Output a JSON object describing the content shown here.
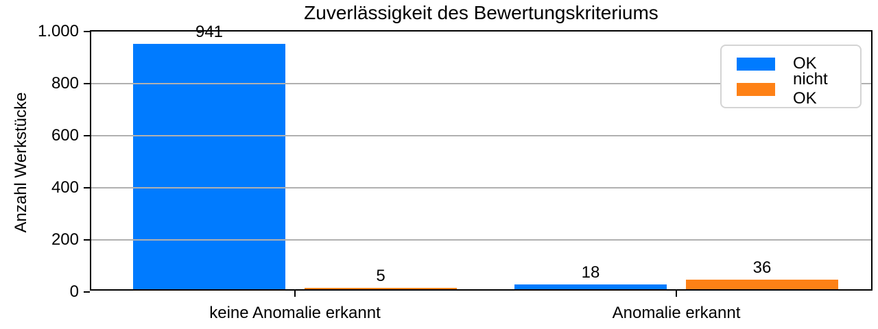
{
  "chart_data": {
    "type": "bar",
    "title": "Zuverlässigkeit des Bewertungskriteriums",
    "xlabel": "",
    "ylabel": "Anzahl Werkstücke",
    "categories": [
      "keine Anomalie erkannt",
      "Anomalie erkannt"
    ],
    "series": [
      {
        "name": "OK",
        "color": "#007bff",
        "values": [
          941,
          18
        ]
      },
      {
        "name": "nicht OK",
        "color": "#fe8116",
        "values": [
          5,
          36
        ]
      }
    ],
    "ylim": [
      0,
      1000
    ],
    "yticks": [
      {
        "value": 0,
        "label": "0"
      },
      {
        "value": 200,
        "label": "200"
      },
      {
        "value": 400,
        "label": "400"
      },
      {
        "value": 600,
        "label": "600"
      },
      {
        "value": 800,
        "label": "800"
      },
      {
        "value": 1000,
        "label": "1.000"
      }
    ],
    "grid": "horizontal",
    "grid_color": "#b0b0b0",
    "axis_color": "#000000",
    "legend": {
      "position": "upper-right",
      "entries": [
        {
          "label": "OK",
          "color": "#007bff"
        },
        {
          "label": "nicht OK",
          "color": "#fe8116"
        }
      ]
    }
  }
}
